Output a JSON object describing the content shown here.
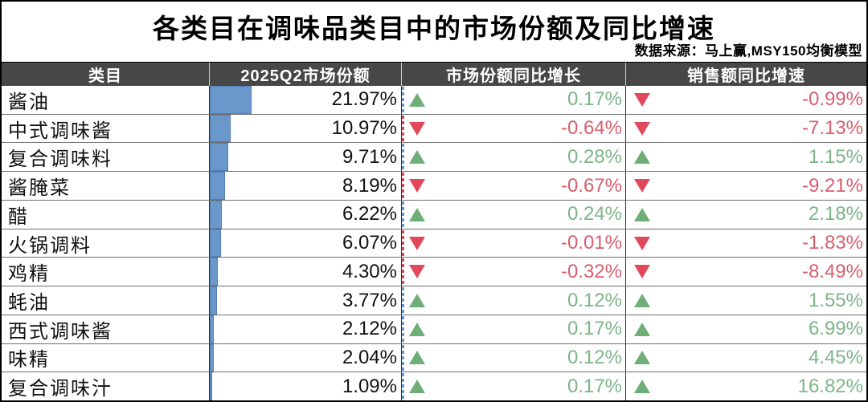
{
  "title": "各类目在调味品类目中的市场份额及同比增速",
  "source_note": "数据来源：马上赢,MSY150均衡模型",
  "table": {
    "headers": [
      "类目",
      "2025Q2市场份额",
      "市场份额同比增长",
      "销售额同比增速"
    ]
  },
  "colors": {
    "header_bg": "#474747",
    "header_text": "#ffffff",
    "data_bar_blue": "#6b98cb",
    "positive_triangle_green": "#6fae77",
    "positive_text_green": "#7db588",
    "negative_triangle_red": "#e1495b",
    "negative_text_red": "#d85f70"
  },
  "chart_data": {
    "type": "table",
    "title": "各类目在调味品类目中的市场份额及同比增速",
    "source": "数据来源：马上赢,MSY150均衡模型",
    "columns": [
      "类目",
      "2025Q2市场份额",
      "市场份额同比增长",
      "销售额同比增速"
    ],
    "bar_scale_max_pct": 100,
    "rows": [
      {
        "category": "酱油",
        "share_pct": 21.97,
        "share_label": "21.97%",
        "share_yoy_pct": 0.17,
        "share_yoy_label": "0.17%",
        "sales_yoy_pct": -0.99,
        "sales_yoy_label": "-0.99%"
      },
      {
        "category": "中式调味酱",
        "share_pct": 10.97,
        "share_label": "10.97%",
        "share_yoy_pct": -0.64,
        "share_yoy_label": "-0.64%",
        "sales_yoy_pct": -7.13,
        "sales_yoy_label": "-7.13%"
      },
      {
        "category": "复合调味料",
        "share_pct": 9.71,
        "share_label": "9.71%",
        "share_yoy_pct": 0.28,
        "share_yoy_label": "0.28%",
        "sales_yoy_pct": 1.15,
        "sales_yoy_label": "1.15%"
      },
      {
        "category": "酱腌菜",
        "share_pct": 8.19,
        "share_label": "8.19%",
        "share_yoy_pct": -0.67,
        "share_yoy_label": "-0.67%",
        "sales_yoy_pct": -9.21,
        "sales_yoy_label": "-9.21%"
      },
      {
        "category": "醋",
        "share_pct": 6.22,
        "share_label": "6.22%",
        "share_yoy_pct": 0.24,
        "share_yoy_label": "0.24%",
        "sales_yoy_pct": 2.18,
        "sales_yoy_label": "2.18%"
      },
      {
        "category": "火锅调料",
        "share_pct": 6.07,
        "share_label": "6.07%",
        "share_yoy_pct": -0.01,
        "share_yoy_label": "-0.01%",
        "sales_yoy_pct": -1.83,
        "sales_yoy_label": "-1.83%"
      },
      {
        "category": "鸡精",
        "share_pct": 4.3,
        "share_label": "4.30%",
        "share_yoy_pct": -0.32,
        "share_yoy_label": "-0.32%",
        "sales_yoy_pct": -8.49,
        "sales_yoy_label": "-8.49%"
      },
      {
        "category": "蚝油",
        "share_pct": 3.77,
        "share_label": "3.77%",
        "share_yoy_pct": 0.12,
        "share_yoy_label": "0.12%",
        "sales_yoy_pct": 1.55,
        "sales_yoy_label": "1.55%"
      },
      {
        "category": "西式调味酱",
        "share_pct": 2.12,
        "share_label": "2.12%",
        "share_yoy_pct": 0.17,
        "share_yoy_label": "0.17%",
        "sales_yoy_pct": 6.99,
        "sales_yoy_label": "6.99%"
      },
      {
        "category": "味精",
        "share_pct": 2.04,
        "share_label": "2.04%",
        "share_yoy_pct": 0.12,
        "share_yoy_label": "0.12%",
        "sales_yoy_pct": 4.45,
        "sales_yoy_label": "4.45%"
      },
      {
        "category": "复合调味汁",
        "share_pct": 1.09,
        "share_label": "1.09%",
        "share_yoy_pct": 0.17,
        "share_yoy_label": "0.17%",
        "sales_yoy_pct": 16.82,
        "sales_yoy_label": "16.82%"
      }
    ]
  }
}
